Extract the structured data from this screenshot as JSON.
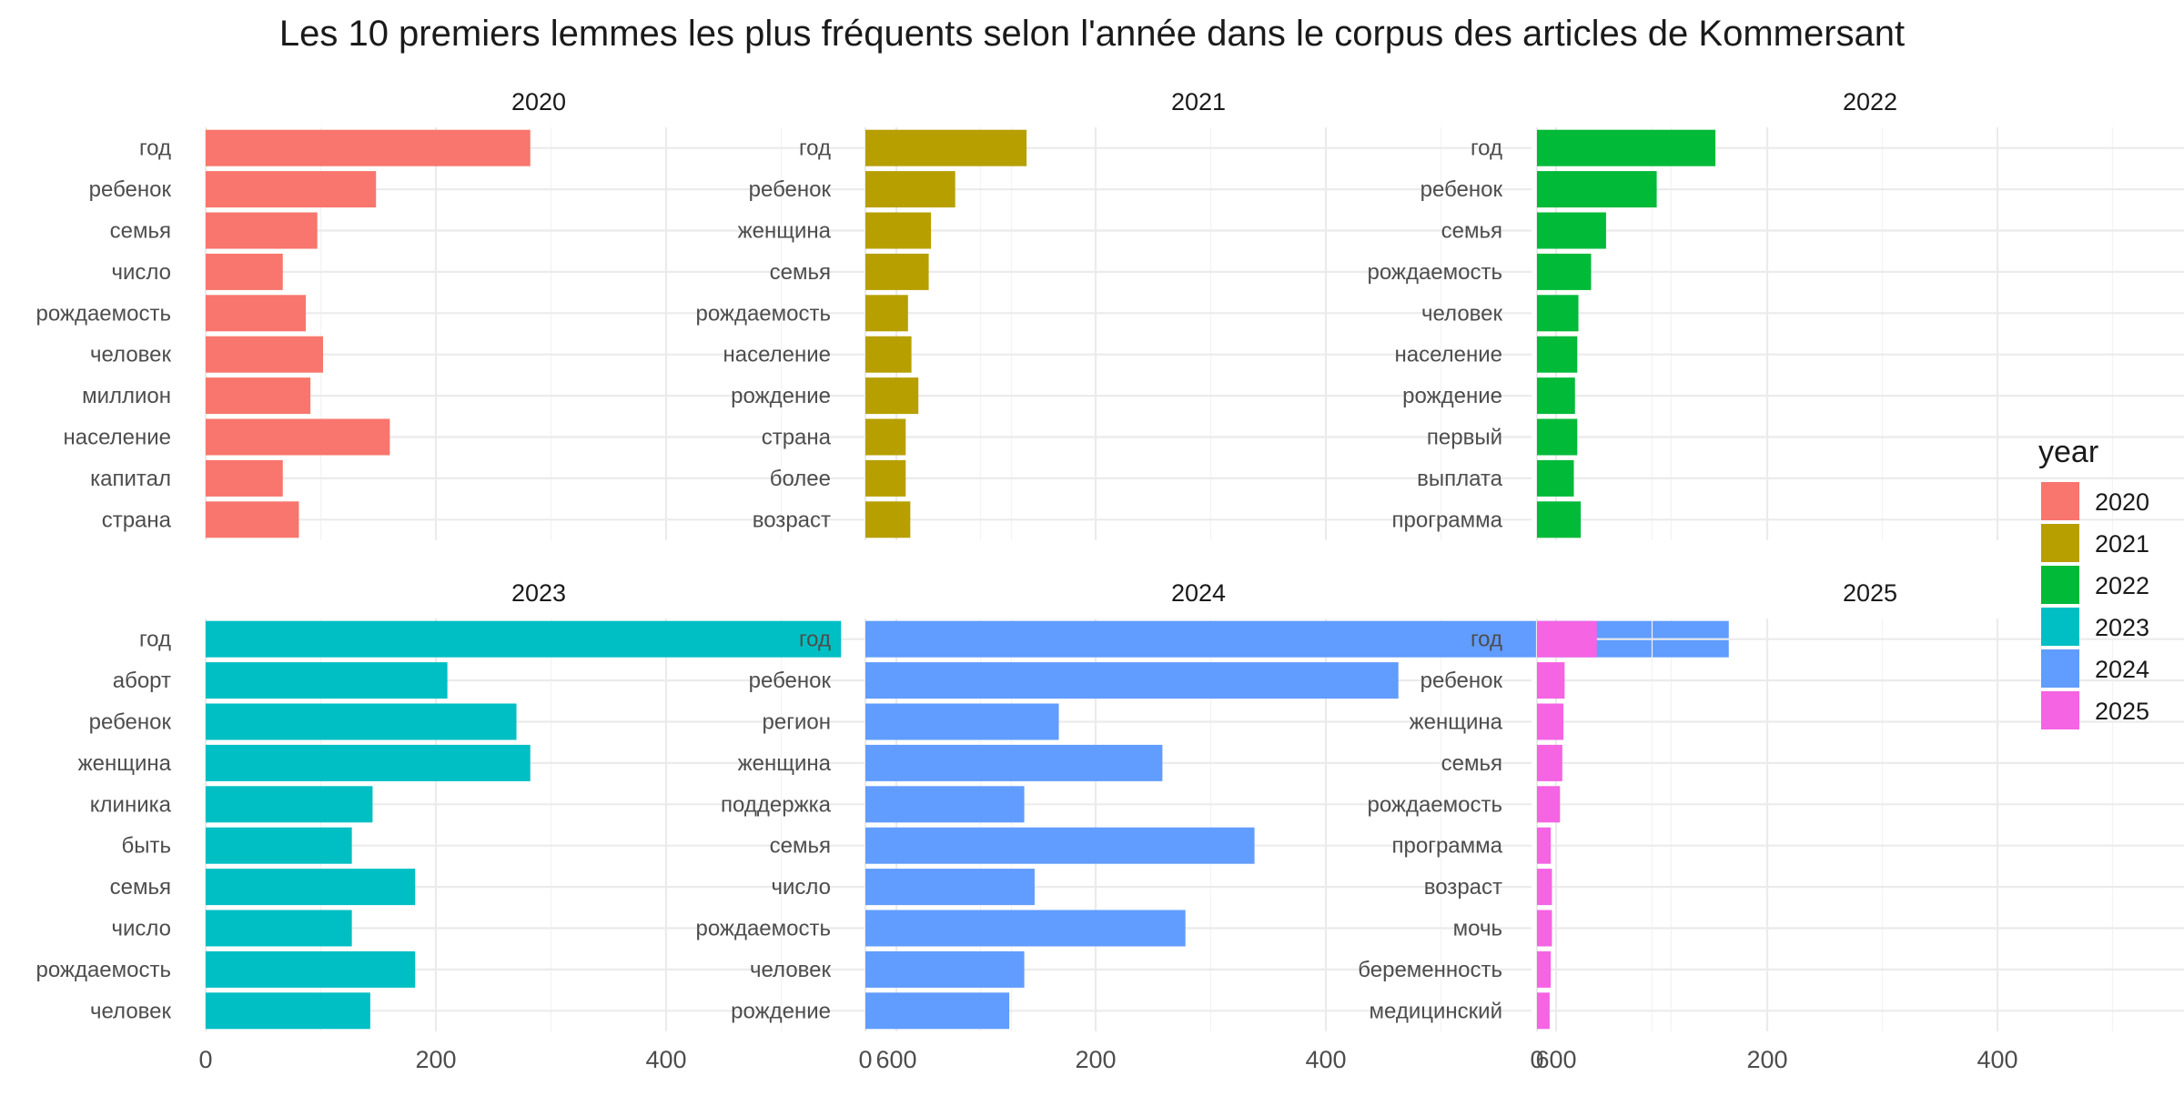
{
  "chart_data": {
    "type": "bar",
    "orientation": "horizontal",
    "title": "Les 10 premiers lemmes les plus fréquents selon l'année dans le corpus des articles de Kommersant",
    "xlim": [
      0,
      760
    ],
    "x_ticks": [
      "0",
      "200",
      "400",
      "600"
    ],
    "grid": true,
    "legend": {
      "title": "year",
      "position": "right",
      "entries": [
        {
          "label": "2020",
          "color": "#F8766D"
        },
        {
          "label": "2021",
          "color": "#B79F00"
        },
        {
          "label": "2022",
          "color": "#00BA38"
        },
        {
          "label": "2023",
          "color": "#00BFC4"
        },
        {
          "label": "2024",
          "color": "#619CFF"
        },
        {
          "label": "2025",
          "color": "#F564E3"
        }
      ]
    },
    "panels": [
      {
        "year": "2020",
        "color": "#F8766D",
        "categories": [
          "год",
          "ребенок",
          "семья",
          "число",
          "рождаемость",
          "человек",
          "миллион",
          "население",
          "капитал",
          "страна"
        ],
        "values": [
          282,
          148,
          97,
          67,
          87,
          102,
          91,
          160,
          67,
          81
        ]
      },
      {
        "year": "2021",
        "color": "#B79F00",
        "categories": [
          "год",
          "ребенок",
          "женщина",
          "семья",
          "рождаемость",
          "население",
          "рождение",
          "страна",
          "более",
          "возраст"
        ],
        "values": [
          140,
          78,
          57,
          55,
          37,
          40,
          46,
          35,
          35,
          39
        ]
      },
      {
        "year": "2022",
        "color": "#00BA38",
        "categories": [
          "год",
          "ребенок",
          "семья",
          "рождаемость",
          "человек",
          "население",
          "рождение",
          "первый",
          "выплата",
          "программа"
        ],
        "values": [
          155,
          104,
          60,
          47,
          36,
          35,
          33,
          35,
          32,
          38
        ]
      },
      {
        "year": "2023",
        "color": "#00BFC4",
        "categories": [
          "год",
          "аборт",
          "ребенок",
          "женщина",
          "клиника",
          "быть",
          "семья",
          "число",
          "рождаемость",
          "человек"
        ],
        "values": [
          552,
          210,
          270,
          282,
          145,
          127,
          182,
          127,
          182,
          143
        ]
      },
      {
        "year": "2024",
        "color": "#619CFF",
        "categories": [
          "год",
          "ребенок",
          "регион",
          "женщина",
          "поддержка",
          "семья",
          "число",
          "рождаемость",
          "человек",
          "рождение"
        ],
        "values": [
          750,
          463,
          168,
          258,
          138,
          338,
          147,
          278,
          138,
          125
        ]
      },
      {
        "year": "2025",
        "color": "#F564E3",
        "categories": [
          "год",
          "ребенок",
          "женщина",
          "семья",
          "рождаемость",
          "программа",
          "возраст",
          "мочь",
          "беременность",
          "медицинский"
        ],
        "values": [
          52,
          24,
          23,
          22,
          20,
          12,
          13,
          13,
          12,
          11
        ]
      }
    ]
  }
}
